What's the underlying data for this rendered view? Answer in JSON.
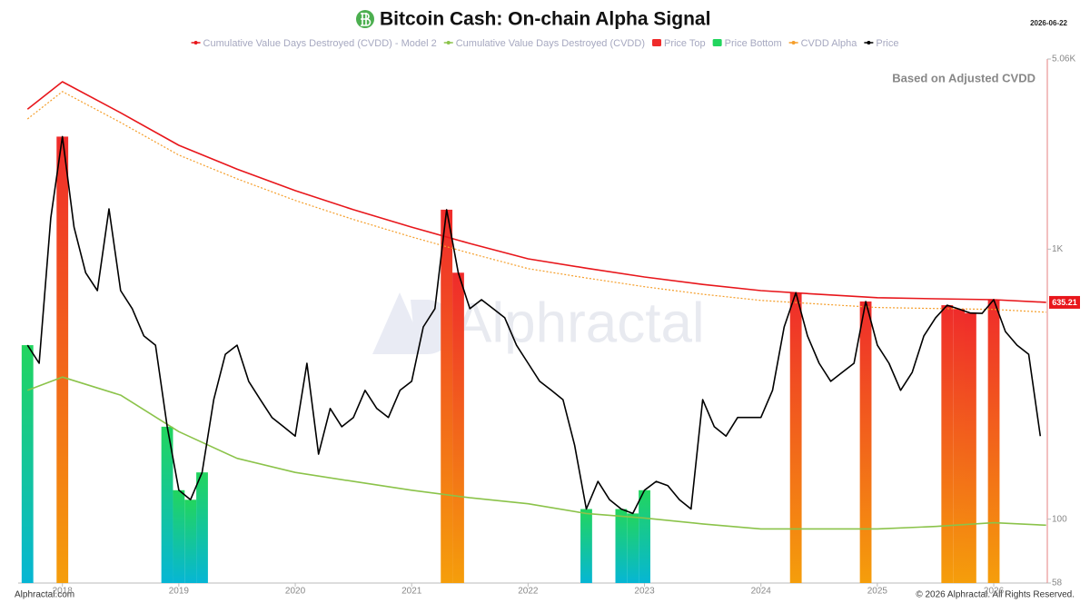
{
  "chart_data": {
    "type": "line",
    "title": "Bitcoin Cash: On-chain Alpha Signal",
    "date": "2026-06-22",
    "annotation": "Based on Adjusted CVDD",
    "watermark": "Alphractal",
    "source": "Alphractal.com",
    "copyright": "© 2026 Alphractal. All Rights Reserved.",
    "log_scale": true,
    "ylim": [
      58,
      5060
    ],
    "yticks": [
      58,
      100,
      {
        "value": 1000,
        "label": "1K"
      },
      {
        "value": 5060,
        "label": "5.06K"
      }
    ],
    "xlim": [
      2017.62,
      2026.46
    ],
    "xticks": [
      2018,
      2019,
      2020,
      2021,
      2022,
      2023,
      2024,
      2025,
      2026
    ],
    "x": [
      2017.7,
      2017.8,
      2017.9,
      2018.0,
      2018.1,
      2018.2,
      2018.3,
      2018.4,
      2018.5,
      2018.6,
      2018.7,
      2018.8,
      2018.9,
      2019.0,
      2019.1,
      2019.2,
      2019.3,
      2019.4,
      2019.5,
      2019.6,
      2019.7,
      2019.8,
      2019.9,
      2020.0,
      2020.1,
      2020.2,
      2020.3,
      2020.4,
      2020.5,
      2020.6,
      2020.7,
      2020.8,
      2020.9,
      2021.0,
      2021.1,
      2021.2,
      2021.3,
      2021.4,
      2021.5,
      2021.6,
      2021.7,
      2021.8,
      2021.9,
      2022.0,
      2022.1,
      2022.2,
      2022.3,
      2022.4,
      2022.5,
      2022.6,
      2022.7,
      2022.8,
      2022.9,
      2023.0,
      2023.1,
      2023.2,
      2023.3,
      2023.4,
      2023.5,
      2023.6,
      2023.7,
      2023.8,
      2023.9,
      2024.0,
      2024.1,
      2024.2,
      2024.3,
      2024.4,
      2024.5,
      2024.6,
      2024.7,
      2024.8,
      2024.9,
      2025.0,
      2025.1,
      2025.2,
      2025.3,
      2025.4,
      2025.5,
      2025.6,
      2025.7,
      2025.8,
      2025.9,
      2026.0,
      2026.1,
      2026.2,
      2026.3,
      2026.4
    ],
    "series": [
      {
        "name": "Cumulative Value Days Destroyed (CVDD) - Model 2",
        "color": "#e8161b",
        "style": "line",
        "x": [
          2017.7,
          2018.0,
          2018.5,
          2019.0,
          2019.5,
          2020.0,
          2020.5,
          2021.0,
          2021.5,
          2022.0,
          2022.5,
          2023.0,
          2023.5,
          2024.0,
          2024.5,
          2025.0,
          2025.5,
          2026.0,
          2026.45
        ],
        "values": [
          3300,
          4170,
          3200,
          2424,
          1980,
          1647,
          1400,
          1207,
          1050,
          921,
          850,
          789,
          740,
          702,
          680,
          661,
          655,
          650,
          635.21
        ],
        "last_label": true
      },
      {
        "name": "Cumulative Value Days Destroyed (CVDD)",
        "color": "#8bc34a",
        "style": "line",
        "x": [
          2017.7,
          2018.0,
          2018.5,
          2019.0,
          2019.5,
          2020.0,
          2020.5,
          2021.0,
          2021.5,
          2022.0,
          2022.5,
          2023.0,
          2023.5,
          2024.0,
          2024.5,
          2025.0,
          2025.5,
          2026.0,
          2026.45
        ],
        "values": [
          300,
          336,
          288,
          211,
          168,
          149,
          138,
          128,
          120,
          114,
          105,
          101,
          96,
          92,
          92,
          92,
          94,
          97,
          95
        ]
      },
      {
        "name": "Price Top",
        "color": "#ef2b2b",
        "style": "bar",
        "values": [
          null,
          null,
          null,
          2611,
          null,
          null,
          null,
          null,
          null,
          null,
          null,
          null,
          null,
          null,
          null,
          null,
          null,
          null,
          null,
          null,
          null,
          null,
          null,
          null,
          null,
          null,
          null,
          null,
          null,
          null,
          null,
          null,
          null,
          null,
          null,
          null,
          1400,
          818,
          null,
          null,
          null,
          null,
          null,
          null,
          null,
          null,
          null,
          null,
          null,
          null,
          null,
          null,
          null,
          null,
          null,
          null,
          null,
          null,
          null,
          null,
          null,
          null,
          null,
          null,
          null,
          null,
          690,
          null,
          null,
          null,
          null,
          null,
          640,
          null,
          null,
          null,
          null,
          null,
          null,
          620,
          600,
          580,
          null,
          650,
          null,
          null,
          null,
          null
        ]
      },
      {
        "name": "Price Bottom",
        "color": "#22d55e",
        "style": "bar",
        "values": [
          441,
          null,
          null,
          null,
          null,
          null,
          null,
          null,
          null,
          null,
          null,
          null,
          220,
          128,
          118,
          149,
          null,
          null,
          null,
          null,
          null,
          null,
          null,
          null,
          null,
          null,
          null,
          null,
          null,
          null,
          null,
          null,
          null,
          null,
          null,
          null,
          null,
          null,
          null,
          null,
          null,
          null,
          null,
          null,
          null,
          null,
          null,
          null,
          109,
          null,
          null,
          109,
          105,
          128,
          null,
          null,
          null,
          null,
          null,
          null,
          null,
          null,
          null,
          null,
          null,
          null,
          null,
          null,
          null,
          null,
          null,
          null,
          null,
          null,
          null,
          null,
          null,
          null,
          null,
          null,
          null,
          null,
          null,
          null,
          null,
          null,
          null,
          null
        ]
      },
      {
        "name": "CVDD Alpha",
        "color": "#f59e2a",
        "style": "line",
        "dash": true,
        "x": [
          2017.7,
          2018.0,
          2018.5,
          2019.0,
          2019.5,
          2020.0,
          2020.5,
          2021.0,
          2021.5,
          2022.0,
          2022.5,
          2023.0,
          2023.5,
          2024.0,
          2024.5,
          2025.0,
          2025.5,
          2026.0,
          2026.45
        ],
        "values": [
          3036,
          3836,
          2944,
          2230,
          1822,
          1515,
          1288,
          1110,
          966,
          847,
          782,
          726,
          681,
          646,
          626,
          608,
          603,
          598,
          584
        ]
      },
      {
        "name": "Price",
        "color": "#000000",
        "style": "line",
        "values": [
          441,
          378,
          1305,
          2611,
          1207,
          818,
          702,
          1410,
          702,
          602,
          477,
          441,
          220,
          128,
          118,
          149,
          277,
          408,
          441,
          324,
          277,
          238,
          220,
          203,
          378,
          174,
          257,
          220,
          238,
          300,
          257,
          238,
          300,
          324,
          515,
          602,
          1400,
          818,
          602,
          650,
          602,
          557,
          441,
          378,
          324,
          300,
          277,
          188,
          109,
          138,
          118,
          109,
          105,
          128,
          138,
          133,
          118,
          109,
          277,
          220,
          203,
          238,
          238,
          238,
          300,
          515,
          690,
          477,
          378,
          324,
          350,
          378,
          640,
          441,
          378,
          300,
          350,
          477,
          557,
          620,
          600,
          580,
          578,
          650,
          495,
          441,
          408,
          203
        ]
      }
    ]
  }
}
